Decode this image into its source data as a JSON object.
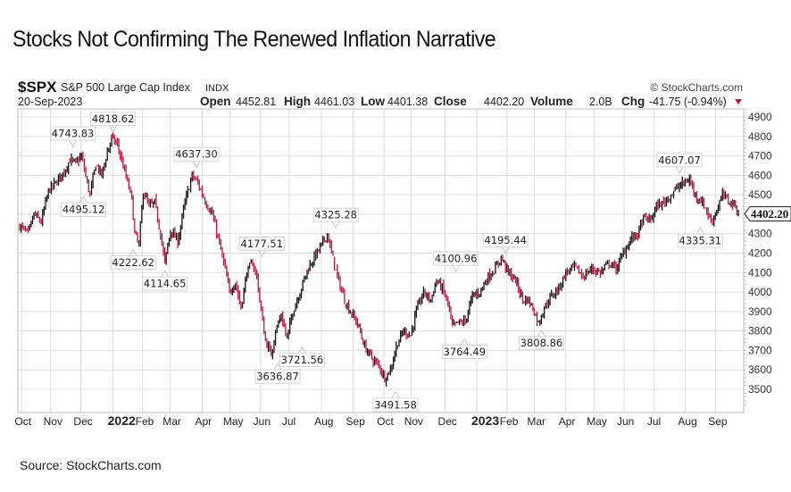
{
  "page": {
    "title": "Stocks Not Confirming The Renewed Inflation Narrative",
    "source": "Source: StockCharts.com"
  },
  "header": {
    "symbol": "$SPX",
    "name": "S&P 500 Large Cap Index",
    "exchange": "INDX",
    "date": "20-Sep-2023",
    "watermark": "© StockCharts.com",
    "open_label": "Open",
    "open": "4452.81",
    "high_label": "High",
    "high": "4461.03",
    "low_label": "Low",
    "low": "4401.38",
    "close_label": "Close",
    "close": "4402.20",
    "volume_label": "Volume",
    "volume": "2.0B",
    "chg_label": "Chg",
    "chg": "-41.75 (-0.94%)",
    "chg_icon": "down-triangle-icon"
  },
  "colors": {
    "up": "#111111",
    "down": "#c0143c",
    "grid": "#dddddd",
    "frame": "#bbbbbb"
  },
  "chart_data": {
    "type": "ohlc-bar",
    "title": "$SPX S&P 500 Large Cap Index INDX",
    "ylabel": "",
    "xlabel": "",
    "ylim": [
      3400,
      4950
    ],
    "yticks": [
      4900,
      4800,
      4700,
      4600,
      4500,
      4400,
      4300,
      4200,
      4100,
      4000,
      3900,
      3800,
      3700,
      3600,
      3500
    ],
    "ytick_labels_shown": [
      "4900",
      "4800",
      "4700",
      "4600",
      "4500",
      "4300",
      "4200",
      "4100",
      "4000",
      "3900",
      "3800",
      "3700",
      "3600",
      "3500"
    ],
    "xticks": [
      {
        "label": "Oct",
        "t": 0.003,
        "bold": false
      },
      {
        "label": "Nov",
        "t": 0.043,
        "bold": false
      },
      {
        "label": "Dec",
        "t": 0.085,
        "bold": false
      },
      {
        "label": "2022",
        "t": 0.13,
        "bold": true
      },
      {
        "label": "Feb",
        "t": 0.171,
        "bold": false
      },
      {
        "label": "Mar",
        "t": 0.209,
        "bold": false
      },
      {
        "label": "Apr",
        "t": 0.254,
        "bold": false
      },
      {
        "label": "May",
        "t": 0.293,
        "bold": false
      },
      {
        "label": "Jun",
        "t": 0.335,
        "bold": false
      },
      {
        "label": "Jul",
        "t": 0.375,
        "bold": false
      },
      {
        "label": "Aug",
        "t": 0.42,
        "bold": false
      },
      {
        "label": "Sep",
        "t": 0.464,
        "bold": false
      },
      {
        "label": "Oct",
        "t": 0.507,
        "bold": false
      },
      {
        "label": "Nov",
        "t": 0.545,
        "bold": false
      },
      {
        "label": "Dec",
        "t": 0.592,
        "bold": false
      },
      {
        "label": "2023",
        "t": 0.636,
        "bold": true
      },
      {
        "label": "Feb",
        "t": 0.678,
        "bold": false
      },
      {
        "label": "Mar",
        "t": 0.716,
        "bold": false
      },
      {
        "label": "Apr",
        "t": 0.76,
        "bold": false
      },
      {
        "label": "May",
        "t": 0.799,
        "bold": false
      },
      {
        "label": "Jun",
        "t": 0.841,
        "bold": false
      },
      {
        "label": "Jul",
        "t": 0.883,
        "bold": false
      },
      {
        "label": "Aug",
        "t": 0.926,
        "bold": false
      },
      {
        "label": "Sep",
        "t": 0.968,
        "bold": false
      }
    ],
    "last_value": "4402.20",
    "series_waypoints": [
      {
        "t": 0.0,
        "v": 4340
      },
      {
        "t": 0.012,
        "v": 4300
      },
      {
        "t": 0.02,
        "v": 4400
      },
      {
        "t": 0.03,
        "v": 4360
      },
      {
        "t": 0.04,
        "v": 4520
      },
      {
        "t": 0.05,
        "v": 4560
      },
      {
        "t": 0.062,
        "v": 4620
      },
      {
        "t": 0.07,
        "v": 4680
      },
      {
        "t": 0.078,
        "v": 4660
      },
      {
        "t": 0.086,
        "v": 4700
      },
      {
        "t": 0.094,
        "v": 4560
      },
      {
        "t": 0.098,
        "v": 4500
      },
      {
        "t": 0.106,
        "v": 4660
      },
      {
        "t": 0.114,
        "v": 4600
      },
      {
        "t": 0.122,
        "v": 4720
      },
      {
        "t": 0.128,
        "v": 4790
      },
      {
        "t": 0.136,
        "v": 4760
      },
      {
        "t": 0.146,
        "v": 4620
      },
      {
        "t": 0.156,
        "v": 4480
      },
      {
        "t": 0.16,
        "v": 4300
      },
      {
        "t": 0.166,
        "v": 4240
      },
      {
        "t": 0.172,
        "v": 4520
      },
      {
        "t": 0.18,
        "v": 4440
      },
      {
        "t": 0.188,
        "v": 4460
      },
      {
        "t": 0.196,
        "v": 4300
      },
      {
        "t": 0.202,
        "v": 4150
      },
      {
        "t": 0.21,
        "v": 4320
      },
      {
        "t": 0.22,
        "v": 4260
      },
      {
        "t": 0.23,
        "v": 4460
      },
      {
        "t": 0.24,
        "v": 4600
      },
      {
        "t": 0.248,
        "v": 4560
      },
      {
        "t": 0.258,
        "v": 4470
      },
      {
        "t": 0.268,
        "v": 4400
      },
      {
        "t": 0.276,
        "v": 4280
      },
      {
        "t": 0.284,
        "v": 4150
      },
      {
        "t": 0.292,
        "v": 4000
      },
      {
        "t": 0.3,
        "v": 4050
      },
      {
        "t": 0.308,
        "v": 3920
      },
      {
        "t": 0.316,
        "v": 4100
      },
      {
        "t": 0.324,
        "v": 4150
      },
      {
        "t": 0.33,
        "v": 4080
      },
      {
        "t": 0.336,
        "v": 3900
      },
      {
        "t": 0.342,
        "v": 3750
      },
      {
        "t": 0.35,
        "v": 3680
      },
      {
        "t": 0.356,
        "v": 3800
      },
      {
        "t": 0.364,
        "v": 3880
      },
      {
        "t": 0.372,
        "v": 3760
      },
      {
        "t": 0.38,
        "v": 3900
      },
      {
        "t": 0.39,
        "v": 4000
      },
      {
        "t": 0.4,
        "v": 4110
      },
      {
        "t": 0.41,
        "v": 4180
      },
      {
        "t": 0.42,
        "v": 4240
      },
      {
        "t": 0.428,
        "v": 4300
      },
      {
        "t": 0.434,
        "v": 4200
      },
      {
        "t": 0.442,
        "v": 4080
      },
      {
        "t": 0.452,
        "v": 3960
      },
      {
        "t": 0.46,
        "v": 3900
      },
      {
        "t": 0.47,
        "v": 3840
      },
      {
        "t": 0.48,
        "v": 3720
      },
      {
        "t": 0.49,
        "v": 3660
      },
      {
        "t": 0.5,
        "v": 3620
      },
      {
        "t": 0.508,
        "v": 3560
      },
      {
        "t": 0.516,
        "v": 3600
      },
      {
        "t": 0.524,
        "v": 3720
      },
      {
        "t": 0.534,
        "v": 3800
      },
      {
        "t": 0.544,
        "v": 3780
      },
      {
        "t": 0.552,
        "v": 3900
      },
      {
        "t": 0.562,
        "v": 4000
      },
      {
        "t": 0.572,
        "v": 3960
      },
      {
        "t": 0.58,
        "v": 4060
      },
      {
        "t": 0.588,
        "v": 4020
      },
      {
        "t": 0.596,
        "v": 3940
      },
      {
        "t": 0.602,
        "v": 3820
      },
      {
        "t": 0.61,
        "v": 3840
      },
      {
        "t": 0.62,
        "v": 3850
      },
      {
        "t": 0.63,
        "v": 3980
      },
      {
        "t": 0.64,
        "v": 4000
      },
      {
        "t": 0.652,
        "v": 4080
      },
      {
        "t": 0.662,
        "v": 4120
      },
      {
        "t": 0.67,
        "v": 4180
      },
      {
        "t": 0.68,
        "v": 4100
      },
      {
        "t": 0.69,
        "v": 4060
      },
      {
        "t": 0.7,
        "v": 3960
      },
      {
        "t": 0.708,
        "v": 3960
      },
      {
        "t": 0.716,
        "v": 3900
      },
      {
        "t": 0.722,
        "v": 3840
      },
      {
        "t": 0.73,
        "v": 3920
      },
      {
        "t": 0.74,
        "v": 3980
      },
      {
        "t": 0.75,
        "v": 4020
      },
      {
        "t": 0.76,
        "v": 4100
      },
      {
        "t": 0.772,
        "v": 4130
      },
      {
        "t": 0.784,
        "v": 4080
      },
      {
        "t": 0.796,
        "v": 4120
      },
      {
        "t": 0.808,
        "v": 4100
      },
      {
        "t": 0.82,
        "v": 4150
      },
      {
        "t": 0.83,
        "v": 4120
      },
      {
        "t": 0.84,
        "v": 4200
      },
      {
        "t": 0.85,
        "v": 4270
      },
      {
        "t": 0.86,
        "v": 4300
      },
      {
        "t": 0.868,
        "v": 4380
      },
      {
        "t": 0.878,
        "v": 4370
      },
      {
        "t": 0.886,
        "v": 4440
      },
      {
        "t": 0.896,
        "v": 4460
      },
      {
        "t": 0.906,
        "v": 4500
      },
      {
        "t": 0.916,
        "v": 4540
      },
      {
        "t": 0.924,
        "v": 4560
      },
      {
        "t": 0.932,
        "v": 4580
      },
      {
        "t": 0.94,
        "v": 4500
      },
      {
        "t": 0.948,
        "v": 4470
      },
      {
        "t": 0.956,
        "v": 4420
      },
      {
        "t": 0.962,
        "v": 4360
      },
      {
        "t": 0.97,
        "v": 4420
      },
      {
        "t": 0.978,
        "v": 4500
      },
      {
        "t": 0.986,
        "v": 4470
      },
      {
        "t": 0.994,
        "v": 4450
      },
      {
        "t": 1.0,
        "v": 4402.2
      }
    ],
    "annotations": [
      {
        "label": "4743.83",
        "value": 4743.83,
        "t": 0.074,
        "pos": "above"
      },
      {
        "label": "4818.62",
        "value": 4818.62,
        "t": 0.13,
        "pos": "above"
      },
      {
        "label": "4495.12",
        "value": 4495.12,
        "t": 0.089,
        "pos": "below"
      },
      {
        "label": "4222.62",
        "value": 4222.62,
        "t": 0.158,
        "pos": "below"
      },
      {
        "label": "4114.65",
        "value": 4114.65,
        "t": 0.202,
        "pos": "below"
      },
      {
        "label": "4637.30",
        "value": 4637.3,
        "t": 0.246,
        "pos": "above"
      },
      {
        "label": "4177.51",
        "value": 4177.51,
        "t": 0.337,
        "pos": "above"
      },
      {
        "label": "3636.87",
        "value": 3636.87,
        "t": 0.359,
        "pos": "below"
      },
      {
        "label": "3721.56",
        "value": 3721.56,
        "t": 0.393,
        "pos": "below"
      },
      {
        "label": "4325.28",
        "value": 4325.28,
        "t": 0.44,
        "pos": "above"
      },
      {
        "label": "3491.58",
        "value": 3491.58,
        "t": 0.523,
        "pos": "below"
      },
      {
        "label": "4100.96",
        "value": 4100.96,
        "t": 0.607,
        "pos": "above"
      },
      {
        "label": "3764.49",
        "value": 3764.49,
        "t": 0.619,
        "pos": "below"
      },
      {
        "label": "4195.44",
        "value": 4195.44,
        "t": 0.676,
        "pos": "above"
      },
      {
        "label": "3808.86",
        "value": 3808.86,
        "t": 0.726,
        "pos": "below"
      },
      {
        "label": "4607.07",
        "value": 4607.07,
        "t": 0.918,
        "pos": "above"
      },
      {
        "label": "4335.31",
        "value": 4335.31,
        "t": 0.947,
        "pos": "below"
      }
    ],
    "grid": true,
    "legend": "none"
  }
}
